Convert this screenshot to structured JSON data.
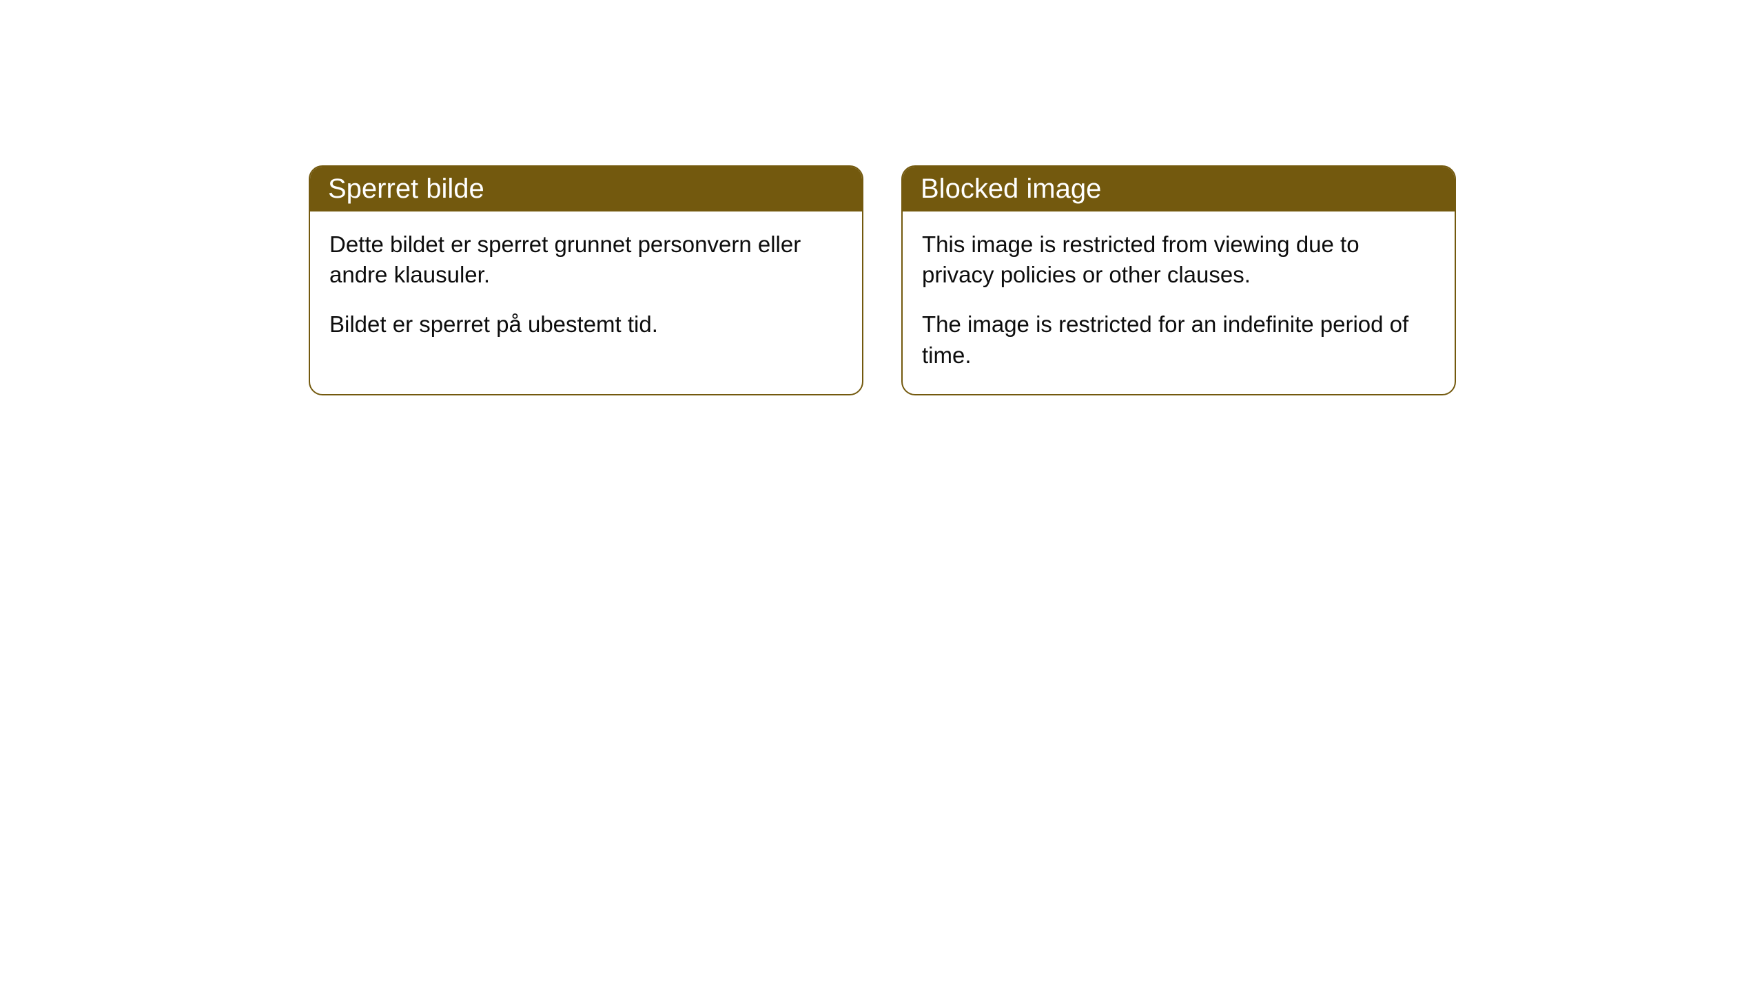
{
  "cards": [
    {
      "header": "Sperret bilde",
      "paragraph1": "Dette bildet er sperret grunnet personvern eller andre klausuler.",
      "paragraph2": "Bildet er sperret på ubestemt tid."
    },
    {
      "header": "Blocked image",
      "paragraph1": "This image is restricted from viewing due to privacy policies or other clauses.",
      "paragraph2": "The image is restricted for an indefinite period of time."
    }
  ],
  "styling": {
    "header_bg_color": "#73590e",
    "header_text_color": "#ffffff",
    "border_color": "#73590e",
    "body_text_color": "#0d0d0d",
    "card_bg_color": "#ffffff",
    "page_bg_color": "#ffffff",
    "border_radius": 20,
    "header_fontsize": 40,
    "body_fontsize": 33
  }
}
